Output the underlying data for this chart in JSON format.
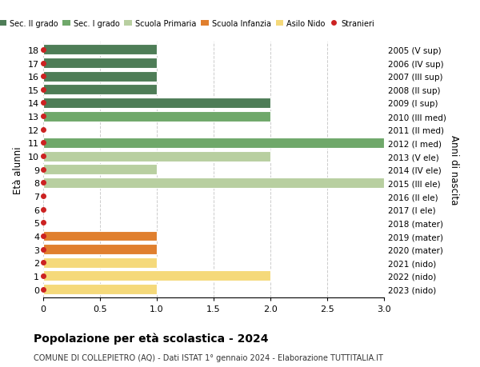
{
  "ages": [
    18,
    17,
    16,
    15,
    14,
    13,
    12,
    11,
    10,
    9,
    8,
    7,
    6,
    5,
    4,
    3,
    2,
    1,
    0
  ],
  "right_labels": [
    "2005 (V sup)",
    "2006 (IV sup)",
    "2007 (III sup)",
    "2008 (II sup)",
    "2009 (I sup)",
    "2010 (III med)",
    "2011 (II med)",
    "2012 (I med)",
    "2013 (V ele)",
    "2014 (IV ele)",
    "2015 (III ele)",
    "2016 (II ele)",
    "2017 (I ele)",
    "2018 (mater)",
    "2019 (mater)",
    "2020 (mater)",
    "2021 (nido)",
    "2022 (nido)",
    "2023 (nido)"
  ],
  "bar_values": [
    1,
    1,
    1,
    1,
    2,
    2,
    0,
    3,
    2,
    1,
    3,
    0,
    0,
    0,
    1,
    1,
    1,
    2,
    1
  ],
  "bar_colors": [
    "#4e7d57",
    "#4e7d57",
    "#4e7d57",
    "#4e7d57",
    "#4e7d57",
    "#6fa86a",
    "#6fa86a",
    "#6fa86a",
    "#b8cfa0",
    "#b8cfa0",
    "#b8cfa0",
    "#b8cfa0",
    "#b8cfa0",
    "#e07f2e",
    "#e07f2e",
    "#e07f2e",
    "#f5d97a",
    "#f5d97a",
    "#f5d97a"
  ],
  "legend_labels": [
    "Sec. II grado",
    "Sec. I grado",
    "Scuola Primaria",
    "Scuola Infanzia",
    "Asilo Nido",
    "Stranieri"
  ],
  "legend_colors": [
    "#4e7d57",
    "#6fa86a",
    "#b8cfa0",
    "#e07f2e",
    "#f5d97a",
    "#cc2222"
  ],
  "ylabel": "Età alunni",
  "right_ylabel": "Anni di nascita",
  "title": "Popolazione per età scolastica - 2024",
  "subtitle": "COMUNE DI COLLEPIETRO (AQ) - Dati ISTAT 1° gennaio 2024 - Elaborazione TUTTITALIA.IT",
  "xlim": [
    0,
    3.0
  ],
  "xticks": [
    0,
    0.5,
    1.0,
    1.5,
    2.0,
    2.5,
    3.0
  ],
  "bg_color": "#ffffff",
  "grid_color": "#cccccc",
  "bar_height": 0.78,
  "dot_size": 4
}
